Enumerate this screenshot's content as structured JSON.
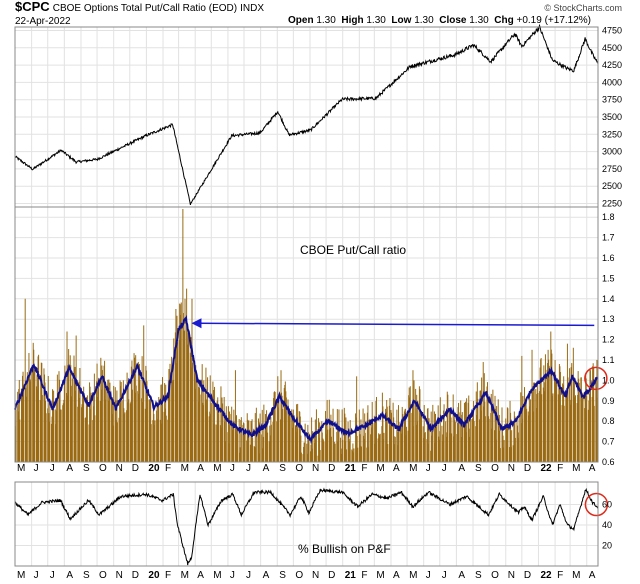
{
  "header": {
    "symbol": "$CPC",
    "name": "CBOE Options Total Put/Call Ratio (EOD)",
    "exchange": "INDX",
    "date": "22-Apr-2022",
    "open_label": "Open",
    "open_value": "1.30",
    "high_label": "High",
    "high_value": "1.30",
    "low_label": "Low",
    "low_value": "1.30",
    "close_label": "Close",
    "close_value": "1.30",
    "chg_label": "Chg",
    "chg_value": "+0.19 (+17.12%)",
    "watermark": "© StockCharts.com"
  },
  "colors": {
    "bars": "#9a6b14",
    "ma_line": "#10108c",
    "arrow": "#1a1ad0",
    "circle": "#e02a1a",
    "grid": "#e2e2e2",
    "line": "#000000"
  },
  "chart_data": [
    {
      "type": "line",
      "panel": "price",
      "ylim": [
        2200,
        4800
      ],
      "yticks": [
        "4750",
        "4500",
        "4250",
        "4000",
        "3750",
        "3500",
        "3250",
        "3000",
        "2750",
        "2500",
        "2250"
      ],
      "x_start": "2019-05-01",
      "x_end": "2022-04-22",
      "keypoints": [
        [
          "2019-05-01",
          2930
        ],
        [
          "2019-06-03",
          2745
        ],
        [
          "2019-07-26",
          3020
        ],
        [
          "2019-08-23",
          2850
        ],
        [
          "2019-10-02",
          2890
        ],
        [
          "2019-12-31",
          3230
        ],
        [
          "2020-02-19",
          3390
        ],
        [
          "2020-03-23",
          2240
        ],
        [
          "2020-06-08",
          3230
        ],
        [
          "2020-07-31",
          3270
        ],
        [
          "2020-09-02",
          3580
        ],
        [
          "2020-09-23",
          3240
        ],
        [
          "2020-11-02",
          3310
        ],
        [
          "2020-12-31",
          3756
        ],
        [
          "2021-03-04",
          3770
        ],
        [
          "2021-05-07",
          4230
        ],
        [
          "2021-07-30",
          4400
        ],
        [
          "2021-09-02",
          4540
        ],
        [
          "2021-10-04",
          4300
        ],
        [
          "2021-11-18",
          4700
        ],
        [
          "2021-12-01",
          4520
        ],
        [
          "2022-01-03",
          4800
        ],
        [
          "2022-01-27",
          4320
        ],
        [
          "2022-02-24",
          4200
        ],
        [
          "2022-03-08",
          4170
        ],
        [
          "2022-03-29",
          4630
        ],
        [
          "2022-04-12",
          4400
        ],
        [
          "2022-04-22",
          4270
        ]
      ]
    },
    {
      "type": "bar",
      "panel": "put_call",
      "title": "CBOE Put/Call ratio",
      "ylim": [
        0.6,
        1.85
      ],
      "yticks": [
        "1.8",
        "1.7",
        "1.6",
        "1.5",
        "1.4",
        "1.3",
        "1.2",
        "1.1",
        "1.0",
        "0.9",
        "0.8",
        "0.7",
        "0.6"
      ],
      "x_start": "2019-05-01",
      "x_end": "2022-04-22",
      "ma_keypoints": [
        [
          "2019-05-01",
          0.86
        ],
        [
          "2019-06-05",
          1.08
        ],
        [
          "2019-07-10",
          0.86
        ],
        [
          "2019-08-10",
          1.06
        ],
        [
          "2019-09-15",
          0.88
        ],
        [
          "2019-10-10",
          1.02
        ],
        [
          "2019-11-05",
          0.86
        ],
        [
          "2019-12-15",
          1.07
        ],
        [
          "2020-01-15",
          0.87
        ],
        [
          "2020-02-10",
          0.92
        ],
        [
          "2020-03-01",
          1.25
        ],
        [
          "2020-03-15",
          1.3
        ],
        [
          "2020-04-05",
          1.0
        ],
        [
          "2020-05-10",
          0.88
        ],
        [
          "2020-06-10",
          0.78
        ],
        [
          "2020-07-15",
          0.73
        ],
        [
          "2020-08-10",
          0.78
        ],
        [
          "2020-09-05",
          0.92
        ],
        [
          "2020-09-30",
          0.82
        ],
        [
          "2020-11-01",
          0.71
        ],
        [
          "2020-12-05",
          0.8
        ],
        [
          "2021-01-10",
          0.74
        ],
        [
          "2021-02-15",
          0.78
        ],
        [
          "2021-03-15",
          0.83
        ],
        [
          "2021-04-15",
          0.76
        ],
        [
          "2021-05-15",
          0.9
        ],
        [
          "2021-06-15",
          0.76
        ],
        [
          "2021-07-20",
          0.86
        ],
        [
          "2021-08-15",
          0.78
        ],
        [
          "2021-09-25",
          0.94
        ],
        [
          "2021-10-25",
          0.76
        ],
        [
          "2021-11-20",
          0.8
        ],
        [
          "2021-12-20",
          0.96
        ],
        [
          "2022-01-25",
          1.05
        ],
        [
          "2022-02-20",
          0.92
        ],
        [
          "2022-03-05",
          1.02
        ],
        [
          "2022-03-25",
          0.92
        ],
        [
          "2022-04-10",
          0.97
        ],
        [
          "2022-04-22",
          1.02
        ]
      ],
      "spikes": [
        [
          "2019-05-20",
          1.4
        ],
        [
          "2019-08-06",
          1.24
        ],
        [
          "2019-08-23",
          1.22
        ],
        [
          "2019-12-27",
          1.27
        ],
        [
          "2020-02-25",
          1.35
        ],
        [
          "2020-03-09",
          1.84
        ],
        [
          "2020-03-16",
          1.45
        ],
        [
          "2020-03-26",
          1.4
        ],
        [
          "2020-06-15",
          1.05
        ],
        [
          "2020-09-08",
          1.05
        ],
        [
          "2021-01-27",
          1.02
        ],
        [
          "2021-05-12",
          1.05
        ],
        [
          "2021-09-20",
          1.09
        ],
        [
          "2021-12-01",
          1.12
        ],
        [
          "2021-12-20",
          1.15
        ],
        [
          "2022-01-24",
          1.24
        ],
        [
          "2022-02-24",
          1.18
        ],
        [
          "2022-03-07",
          1.16
        ],
        [
          "2022-04-22",
          1.3
        ]
      ],
      "annotation_arrow": {
        "from": [
          "2022-04-15",
          1.27
        ],
        "to": [
          "2020-03-25",
          1.28
        ]
      },
      "highlight": {
        "x": "2022-04-18",
        "y": 1.01
      }
    },
    {
      "type": "line",
      "panel": "bullish_pf",
      "title": "% Bullish on P&F",
      "ylim": [
        0,
        82
      ],
      "yticks": [
        "60",
        "40",
        "20"
      ],
      "x_start": "2019-05-01",
      "x_end": "2022-04-22",
      "keypoints": [
        [
          "2019-05-01",
          62
        ],
        [
          "2019-05-25",
          50
        ],
        [
          "2019-06-20",
          62
        ],
        [
          "2019-07-25",
          64
        ],
        [
          "2019-08-12",
          46
        ],
        [
          "2019-09-15",
          64
        ],
        [
          "2019-10-05",
          50
        ],
        [
          "2019-11-15",
          68
        ],
        [
          "2019-12-31",
          70
        ],
        [
          "2020-01-31",
          64
        ],
        [
          "2020-02-20",
          70
        ],
        [
          "2020-02-28",
          40
        ],
        [
          "2020-03-18",
          2
        ],
        [
          "2020-03-25",
          8
        ],
        [
          "2020-04-10",
          70
        ],
        [
          "2020-04-25",
          40
        ],
        [
          "2020-05-20",
          64
        ],
        [
          "2020-06-10",
          70
        ],
        [
          "2020-06-26",
          50
        ],
        [
          "2020-07-20",
          72
        ],
        [
          "2020-08-20",
          72
        ],
        [
          "2020-09-25",
          50
        ],
        [
          "2020-10-15",
          68
        ],
        [
          "2020-10-30",
          52
        ],
        [
          "2020-11-20",
          74
        ],
        [
          "2020-12-31",
          72
        ],
        [
          "2021-01-29",
          58
        ],
        [
          "2021-02-25",
          70
        ],
        [
          "2021-03-25",
          66
        ],
        [
          "2021-04-20",
          72
        ],
        [
          "2021-05-12",
          58
        ],
        [
          "2021-06-10",
          72
        ],
        [
          "2021-07-20",
          60
        ],
        [
          "2021-08-20",
          68
        ],
        [
          "2021-09-30",
          50
        ],
        [
          "2021-10-20",
          70
        ],
        [
          "2021-11-25",
          52
        ],
        [
          "2021-12-05",
          58
        ],
        [
          "2021-12-20",
          45
        ],
        [
          "2022-01-10",
          68
        ],
        [
          "2022-01-27",
          40
        ],
        [
          "2022-02-10",
          60
        ],
        [
          "2022-02-24",
          40
        ],
        [
          "2022-03-08",
          36
        ],
        [
          "2022-03-30",
          75
        ],
        [
          "2022-04-12",
          62
        ],
        [
          "2022-04-22",
          57
        ]
      ],
      "highlight": {
        "x": "2022-04-19",
        "y": 60
      }
    }
  ],
  "x_axis": {
    "labels": [
      [
        "2019-05-01",
        "M"
      ],
      [
        "2019-06-01",
        "J"
      ],
      [
        "2019-07-01",
        "J"
      ],
      [
        "2019-08-01",
        "A"
      ],
      [
        "2019-09-01",
        "S"
      ],
      [
        "2019-10-01",
        "O"
      ],
      [
        "2019-11-01",
        "N"
      ],
      [
        "2019-12-01",
        "D"
      ],
      [
        "2020-01-01",
        "20"
      ],
      [
        "2020-02-01",
        "F"
      ],
      [
        "2020-03-01",
        "M"
      ],
      [
        "2020-04-01",
        "A"
      ],
      [
        "2020-05-01",
        "M"
      ],
      [
        "2020-06-01",
        "J"
      ],
      [
        "2020-07-01",
        "J"
      ],
      [
        "2020-08-01",
        "A"
      ],
      [
        "2020-09-01",
        "S"
      ],
      [
        "2020-10-01",
        "O"
      ],
      [
        "2020-11-01",
        "N"
      ],
      [
        "2020-12-01",
        "D"
      ],
      [
        "2021-01-01",
        "21"
      ],
      [
        "2021-02-01",
        "F"
      ],
      [
        "2021-03-01",
        "M"
      ],
      [
        "2021-04-01",
        "A"
      ],
      [
        "2021-05-01",
        "M"
      ],
      [
        "2021-06-01",
        "J"
      ],
      [
        "2021-07-01",
        "J"
      ],
      [
        "2021-08-01",
        "A"
      ],
      [
        "2021-09-01",
        "S"
      ],
      [
        "2021-10-01",
        "O"
      ],
      [
        "2021-11-01",
        "N"
      ],
      [
        "2021-12-01",
        "D"
      ],
      [
        "2022-01-01",
        "22"
      ],
      [
        "2022-02-01",
        "F"
      ],
      [
        "2022-03-01",
        "M"
      ],
      [
        "2022-04-01",
        "A"
      ]
    ]
  }
}
